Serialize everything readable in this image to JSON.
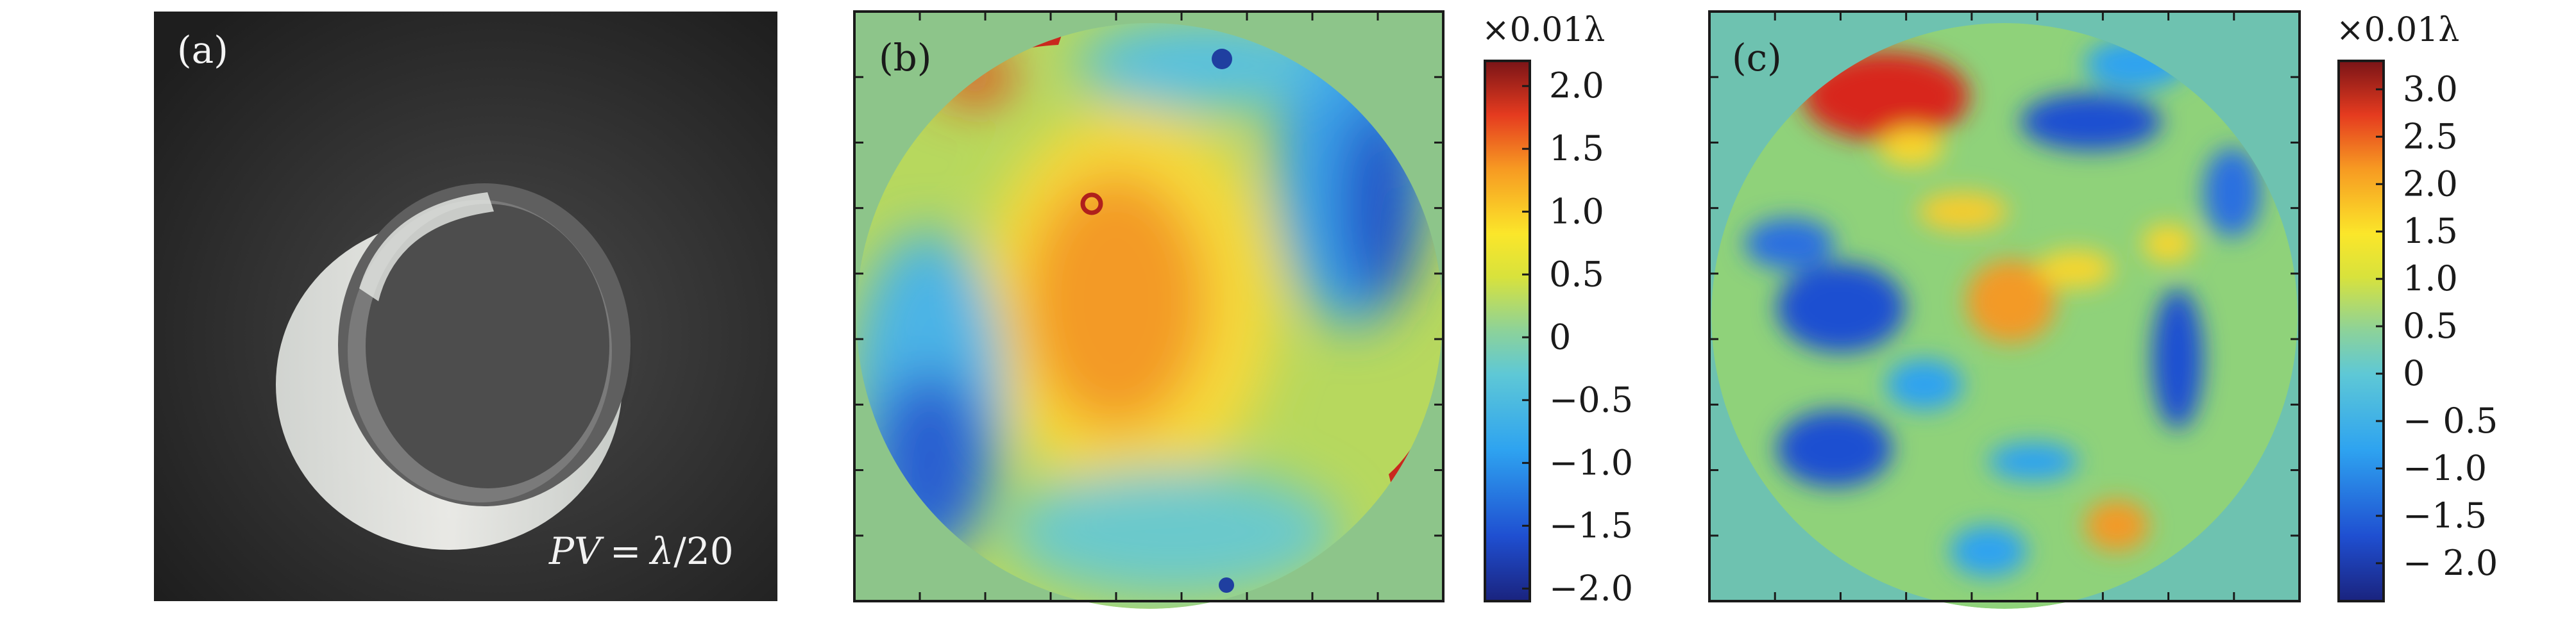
{
  "panels": {
    "a": {
      "label": "(a)",
      "annotation": "PV = λ/20",
      "annotation_parts": {
        "pv": "PV",
        "eq": "=",
        "lambda": "λ",
        "rest": "/20"
      }
    },
    "b": {
      "label": "(b)",
      "colorbar_unit": "×0.01λ",
      "colorbar_ticks": [
        "2.0",
        "1.5",
        "1.0",
        "0.5",
        "0",
        "−0.5",
        "−1.0",
        "−1.5",
        "−2.0"
      ],
      "colorbar_range": [
        -2.1,
        2.2
      ]
    },
    "c": {
      "label": "(c)",
      "colorbar_unit": "×0.01λ",
      "colorbar_ticks": [
        "3.0",
        "2.5",
        "2.0",
        "1.5",
        "1.0",
        "0.5",
        "0",
        "− 0.5",
        "−1.0",
        "−1.5",
        "− 2.0"
      ],
      "colorbar_range": [
        -2.4,
        3.3
      ]
    }
  },
  "colors": {
    "background_b": "#8dc58a",
    "background_c": "#6ec2b0",
    "photo_bg": "#2b2b2b"
  }
}
